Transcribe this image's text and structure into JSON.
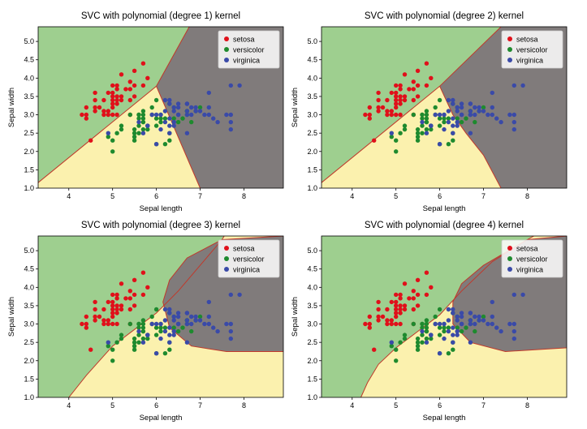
{
  "colors": {
    "setosa": "#e0101a",
    "versicolor": "#1e8a2e",
    "virginica": "#3a4aa8",
    "region_setosa": "#9ecf8f",
    "region_versicolor": "#fbf1ae",
    "region_virginica": "#807b7b",
    "boundary": "#c0392b"
  },
  "chart_data": [
    {
      "type": "scatter",
      "title": "SVC with polynomial (degree 1) kernel",
      "xlabel": "Sepal length",
      "ylabel": "Sepal width",
      "xlim": [
        3.3,
        8.9
      ],
      "ylim": [
        1.0,
        5.4
      ],
      "xticks": [
        "4",
        "5",
        "6",
        "7",
        "8"
      ],
      "yticks": [
        "1.0",
        "1.5",
        "2.0",
        "2.5",
        "3.0",
        "3.5",
        "4.0",
        "4.5",
        "5.0"
      ],
      "legend": {
        "placement": "top-right",
        "entries": [
          "setosa",
          "versicolor",
          "virginica"
        ]
      },
      "regions": {
        "setosa_boundary": [
          [
            3.3,
            1.15
          ],
          [
            6.0,
            3.78
          ],
          [
            6.75,
            5.4
          ]
        ],
        "virginica_boundary": [
          [
            6.0,
            3.78
          ],
          [
            7.0,
            1.0
          ]
        ]
      }
    },
    {
      "type": "scatter",
      "title": "SVC with polynomial (degree 2) kernel",
      "xlabel": "Sepal length",
      "ylabel": "Sepal width",
      "xlim": [
        3.3,
        8.9
      ],
      "ylim": [
        1.0,
        5.4
      ],
      "xticks": [
        "4",
        "5",
        "6",
        "7",
        "8"
      ],
      "yticks": [
        "1.0",
        "1.5",
        "2.0",
        "2.5",
        "3.0",
        "3.5",
        "4.0",
        "4.5",
        "5.0"
      ],
      "legend": {
        "placement": "top-right",
        "entries": [
          "setosa",
          "versicolor",
          "virginica"
        ]
      },
      "regions": {
        "setosa_boundary": [
          [
            3.3,
            1.15
          ],
          [
            6.0,
            3.78
          ],
          [
            7.4,
            5.4
          ]
        ],
        "virginica_boundary": [
          [
            6.0,
            3.78
          ],
          [
            6.3,
            3.0
          ],
          [
            6.6,
            2.5
          ],
          [
            7.0,
            1.9
          ],
          [
            7.4,
            1.0
          ]
        ]
      }
    },
    {
      "type": "scatter",
      "title": "SVC with polynomial (degree 3) kernel",
      "xlabel": "Sepal length",
      "ylabel": "Sepal width",
      "xlim": [
        3.3,
        8.9
      ],
      "ylim": [
        1.0,
        5.4
      ],
      "xticks": [
        "4",
        "5",
        "6",
        "7",
        "8"
      ],
      "yticks": [
        "1.0",
        "1.5",
        "2.0",
        "2.5",
        "3.0",
        "3.5",
        "4.0",
        "4.5",
        "5.0"
      ],
      "legend": {
        "placement": "top-right",
        "entries": [
          "setosa",
          "versicolor",
          "virginica"
        ]
      },
      "regions": {
        "setosa_boundary": [
          [
            4.0,
            1.0
          ],
          [
            4.4,
            1.6
          ],
          [
            5.0,
            2.4
          ],
          [
            5.5,
            2.85
          ],
          [
            6.0,
            3.3
          ],
          [
            6.5,
            3.9
          ],
          [
            7.0,
            4.6
          ],
          [
            7.5,
            5.3
          ],
          [
            7.55,
            5.4
          ]
        ],
        "virginica_boundary": [
          [
            8.9,
            5.4
          ],
          [
            7.5,
            5.3
          ],
          [
            6.7,
            4.8
          ],
          [
            6.3,
            4.2
          ],
          [
            6.15,
            3.6
          ],
          [
            6.3,
            2.9
          ],
          [
            6.8,
            2.4
          ],
          [
            7.6,
            2.25
          ],
          [
            8.9,
            2.25
          ]
        ]
      }
    },
    {
      "type": "scatter",
      "title": "SVC with polynomial (degree 4) kernel",
      "xlabel": "Sepal length",
      "ylabel": "Sepal width",
      "xlim": [
        3.3,
        8.9
      ],
      "ylim": [
        1.0,
        5.4
      ],
      "xticks": [
        "4",
        "5",
        "6",
        "7",
        "8"
      ],
      "yticks": [
        "1.0",
        "1.5",
        "2.0",
        "2.5",
        "3.0",
        "3.5",
        "4.0",
        "4.5",
        "5.0"
      ],
      "legend": {
        "placement": "top-right",
        "entries": [
          "setosa",
          "versicolor",
          "virginica"
        ]
      },
      "regions": {
        "setosa_boundary": [
          [
            4.2,
            1.0
          ],
          [
            4.35,
            1.4
          ],
          [
            4.6,
            1.9
          ],
          [
            5.0,
            2.35
          ],
          [
            5.5,
            2.8
          ],
          [
            6.0,
            3.25
          ],
          [
            6.5,
            3.9
          ],
          [
            7.2,
            4.7
          ],
          [
            8.0,
            5.3
          ],
          [
            8.15,
            5.4
          ]
        ],
        "virginica_boundary": [
          [
            8.9,
            5.4
          ],
          [
            8.0,
            5.3
          ],
          [
            7.0,
            4.6
          ],
          [
            6.5,
            4.1
          ],
          [
            6.3,
            3.6
          ],
          [
            6.3,
            3.0
          ],
          [
            6.7,
            2.5
          ],
          [
            7.5,
            2.25
          ],
          [
            8.9,
            2.35
          ]
        ]
      }
    }
  ],
  "points": {
    "setosa": [
      [
        4.5,
        2.3
      ],
      [
        4.3,
        3.0
      ],
      [
        4.4,
        2.9
      ],
      [
        4.4,
        3.0
      ],
      [
        4.4,
        3.2
      ],
      [
        4.6,
        3.1
      ],
      [
        4.6,
        3.4
      ],
      [
        4.6,
        3.6
      ],
      [
        4.6,
        3.2
      ],
      [
        4.7,
        3.2
      ],
      [
        4.8,
        3.0
      ],
      [
        4.8,
        3.4
      ],
      [
        4.8,
        3.1
      ],
      [
        4.9,
        3.0
      ],
      [
        4.9,
        3.1
      ],
      [
        4.9,
        3.6
      ],
      [
        5.0,
        3.6
      ],
      [
        5.0,
        3.4
      ],
      [
        5.0,
        3.0
      ],
      [
        5.0,
        3.3
      ],
      [
        5.0,
        3.2
      ],
      [
        5.0,
        3.5
      ],
      [
        5.1,
        3.5
      ],
      [
        5.1,
        3.7
      ],
      [
        5.1,
        3.3
      ],
      [
        5.1,
        3.8
      ],
      [
        5.1,
        3.4
      ],
      [
        5.2,
        3.4
      ],
      [
        5.2,
        4.1
      ],
      [
        5.2,
        3.5
      ],
      [
        5.3,
        3.7
      ],
      [
        5.4,
        3.9
      ],
      [
        5.4,
        3.7
      ],
      [
        5.4,
        3.4
      ],
      [
        5.5,
        4.2
      ],
      [
        5.5,
        3.5
      ],
      [
        5.7,
        4.4
      ],
      [
        5.7,
        3.8
      ],
      [
        5.8,
        4.0
      ],
      [
        5.1,
        3.0
      ],
      [
        5.0,
        3.8
      ],
      [
        5.4,
        3.0
      ],
      [
        5.5,
        3.8
      ]
    ],
    "versicolor": [
      [
        7.0,
        3.2
      ],
      [
        6.4,
        3.2
      ],
      [
        6.9,
        3.1
      ],
      [
        5.5,
        2.3
      ],
      [
        6.5,
        2.8
      ],
      [
        5.7,
        2.8
      ],
      [
        6.3,
        3.3
      ],
      [
        4.9,
        2.4
      ],
      [
        6.6,
        2.9
      ],
      [
        5.2,
        2.7
      ],
      [
        5.0,
        2.0
      ],
      [
        5.9,
        3.0
      ],
      [
        6.0,
        2.2
      ],
      [
        6.1,
        2.9
      ],
      [
        5.6,
        2.9
      ],
      [
        6.7,
        3.1
      ],
      [
        5.6,
        3.0
      ],
      [
        5.8,
        2.7
      ],
      [
        6.2,
        2.2
      ],
      [
        5.6,
        2.5
      ],
      [
        5.9,
        3.2
      ],
      [
        6.1,
        2.8
      ],
      [
        6.3,
        2.5
      ],
      [
        6.4,
        2.9
      ],
      [
        6.8,
        2.8
      ],
      [
        6.7,
        3.0
      ],
      [
        6.0,
        2.9
      ],
      [
        5.7,
        2.6
      ],
      [
        5.5,
        2.4
      ],
      [
        5.8,
        2.7
      ],
      [
        6.0,
        2.7
      ],
      [
        5.4,
        3.0
      ],
      [
        6.0,
        3.4
      ],
      [
        6.7,
        3.1
      ],
      [
        6.3,
        2.3
      ],
      [
        5.6,
        3.0
      ],
      [
        5.5,
        2.5
      ],
      [
        5.5,
        2.6
      ],
      [
        6.1,
        3.0
      ],
      [
        5.8,
        2.6
      ],
      [
        5.0,
        2.3
      ],
      [
        5.6,
        2.7
      ],
      [
        5.7,
        3.0
      ],
      [
        5.7,
        2.9
      ],
      [
        6.2,
        2.9
      ],
      [
        5.1,
        2.5
      ],
      [
        5.7,
        2.8
      ],
      [
        5.2,
        2.6
      ],
      [
        5.7,
        3.1
      ]
    ],
    "virginica": [
      [
        6.3,
        3.3
      ],
      [
        5.8,
        2.7
      ],
      [
        7.1,
        3.0
      ],
      [
        6.3,
        2.9
      ],
      [
        6.5,
        3.0
      ],
      [
        7.6,
        3.0
      ],
      [
        4.9,
        2.5
      ],
      [
        7.3,
        2.9
      ],
      [
        6.7,
        2.5
      ],
      [
        7.2,
        3.6
      ],
      [
        6.5,
        3.2
      ],
      [
        6.4,
        2.7
      ],
      [
        6.8,
        3.0
      ],
      [
        5.7,
        2.5
      ],
      [
        6.4,
        3.2
      ],
      [
        7.7,
        3.8
      ],
      [
        7.7,
        2.6
      ],
      [
        6.0,
        2.2
      ],
      [
        6.9,
        3.2
      ],
      [
        5.6,
        2.8
      ],
      [
        7.7,
        2.8
      ],
      [
        6.3,
        2.7
      ],
      [
        6.7,
        3.3
      ],
      [
        7.2,
        3.2
      ],
      [
        6.2,
        2.8
      ],
      [
        6.1,
        3.0
      ],
      [
        6.4,
        2.8
      ],
      [
        7.2,
        3.0
      ],
      [
        7.4,
        2.8
      ],
      [
        7.9,
        3.8
      ],
      [
        6.4,
        2.8
      ],
      [
        6.1,
        2.6
      ],
      [
        7.7,
        3.0
      ],
      [
        6.3,
        3.4
      ],
      [
        6.4,
        3.1
      ],
      [
        6.0,
        3.0
      ],
      [
        6.9,
        3.1
      ],
      [
        6.7,
        3.1
      ],
      [
        5.8,
        2.7
      ],
      [
        6.8,
        3.2
      ],
      [
        6.7,
        3.3
      ],
      [
        6.7,
        3.0
      ],
      [
        6.3,
        2.5
      ],
      [
        6.5,
        3.0
      ],
      [
        6.2,
        3.4
      ],
      [
        5.9,
        3.0
      ],
      [
        6.5,
        3.3
      ],
      [
        6.2,
        3.1
      ],
      [
        7.0,
        3.1
      ]
    ]
  }
}
